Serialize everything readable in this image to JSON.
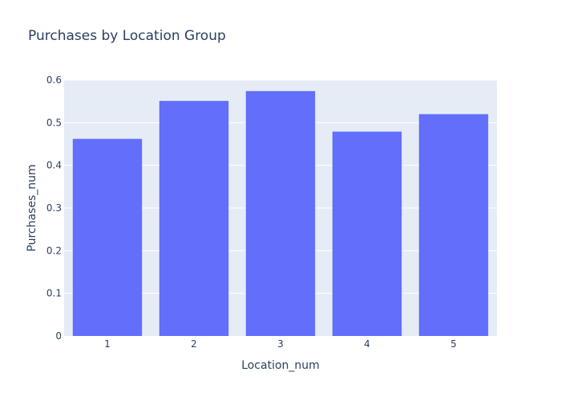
{
  "chart_data": {
    "type": "bar",
    "title": "Purchases by Location Group",
    "xlabel": "Location_num",
    "ylabel": "Purchases_num",
    "categories": [
      "1",
      "2",
      "3",
      "4",
      "5"
    ],
    "values": [
      0.462,
      0.551,
      0.574,
      0.479,
      0.52
    ],
    "ylim": [
      0,
      0.6
    ],
    "yticks": [
      0,
      0.1,
      0.2,
      0.3,
      0.4,
      0.5,
      0.6
    ],
    "ytick_labels": [
      "0",
      "0.1",
      "0.2",
      "0.3",
      "0.4",
      "0.5",
      "0.6"
    ],
    "grid": true,
    "bar_color": "#636efa",
    "plot_background": "#e5ecf6",
    "text_color": "#2a3f5f"
  }
}
